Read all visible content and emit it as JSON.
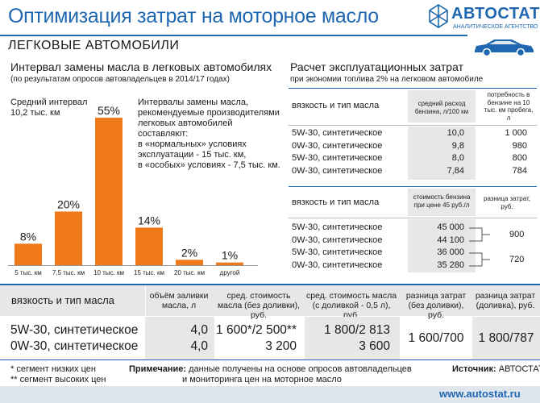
{
  "header": {
    "title": "Оптимизация затрат на моторное масло"
  },
  "logo": {
    "brand": "АВТОСТАТ",
    "subtitle": "АНАЛИТИЧЕСКОЕ АГЕНТСТВО"
  },
  "section": {
    "title": "ЛЕГКОВЫЕ АВТОМОБИЛИ"
  },
  "left": {
    "title": "Интервал замены масла в легковых автомобилях",
    "subtitle": "(по результатам опросов автовладельцев в 2014/17 годах)",
    "avg_line1": "Средний интервал",
    "avg_line2": "10,2 тыс. км",
    "note_lines": [
      "Интервалы замены масла,",
      "рекомендуемые производителями",
      "легковых автомобилей",
      "составляют:",
      "в «нормальных» условиях",
      "эксплуатации - 15 тыс. км,",
      "в «особых» условиях - 7,5 тыс. км."
    ]
  },
  "chart_data": {
    "type": "bar",
    "categories": [
      "5 тыс. км",
      "7,5 тыс. км",
      "10 тыс. км",
      "15 тыс. км",
      "20 тыс. км",
      "другой"
    ],
    "values": [
      8,
      20,
      55,
      14,
      2,
      1
    ],
    "value_labels": [
      "8%",
      "20%",
      "55%",
      "14%",
      "2%",
      "1%"
    ],
    "colors": {
      "bar": "#f07a1a",
      "bar_dark": "#e55a10"
    },
    "ylim": [
      0,
      55
    ]
  },
  "right": {
    "title": "Расчет эксплуатационных затрат",
    "subtitle": "при экономии топлива 2% на легковом автомобиле",
    "t1": {
      "col0": "вязкость и тип масла",
      "col1": "средний расход бензина, л/100 км",
      "col2": "потребность в бензине на 10 тыс. км пробега, л",
      "rows": [
        {
          "oil": "5W-30, синтетическое",
          "c1": "10,0",
          "c2": "1 000"
        },
        {
          "oil": "0W-30, синтетическое",
          "c1": "9,8",
          "c2": "980"
        },
        {
          "oil": "5W-30, синтетическое",
          "c1": "8,0",
          "c2": "800"
        },
        {
          "oil": "0W-30, синтетическое",
          "c1": "7,84",
          "c2": "784"
        }
      ]
    },
    "t2": {
      "col0": "вязкость и тип масла",
      "col1": "стоимость бензина при цене 45 руб./л",
      "col2": "разница затрат, руб.",
      "rows": [
        {
          "oil": "5W-30, синтетическое",
          "c1": "45 000"
        },
        {
          "oil": "0W-30, синтетическое",
          "c1": "44 100"
        },
        {
          "oil": "5W-30, синтетическое",
          "c1": "36 000"
        },
        {
          "oil": "0W-30, синтетическое",
          "c1": "35 280"
        }
      ],
      "diffs": [
        "900",
        "720"
      ]
    }
  },
  "bottom": {
    "headers": [
      "вязкость и тип масла",
      "объём заливки масла, л",
      "сред. стоимость масла (без доливки), руб.",
      "сред. стоимость масла (с доливкой - 0,5 л), руб.",
      "разница затрат (без доливки), руб.",
      "разница затрат (доливка), руб."
    ],
    "rows": [
      {
        "oil": "5W-30, синтетическое",
        "vol": "4,0",
        "c1": "1 600*/2 500**",
        "c2": "1 800/2 813"
      },
      {
        "oil": "0W-30, синтетическое",
        "vol": "4,0",
        "c1": "3 200",
        "c2": "3 600"
      }
    ],
    "diff1": "1 600/700",
    "diff2": "1 800/787"
  },
  "footer": {
    "fn1": "* сегмент низких цен",
    "fn2": "** сегмент высоких цен",
    "note_label": "Примечание:",
    "note_line1": "данные получены на основе опросов автовладельцев",
    "note_line2": "и мониторинга цен на моторное масло",
    "source_label": "Источник:",
    "source_value": "АВТОСТАТ",
    "url": "www.autostat.ru"
  },
  "colors": {
    "accent": "#1f67b1",
    "shade": "#e7e7e7"
  }
}
